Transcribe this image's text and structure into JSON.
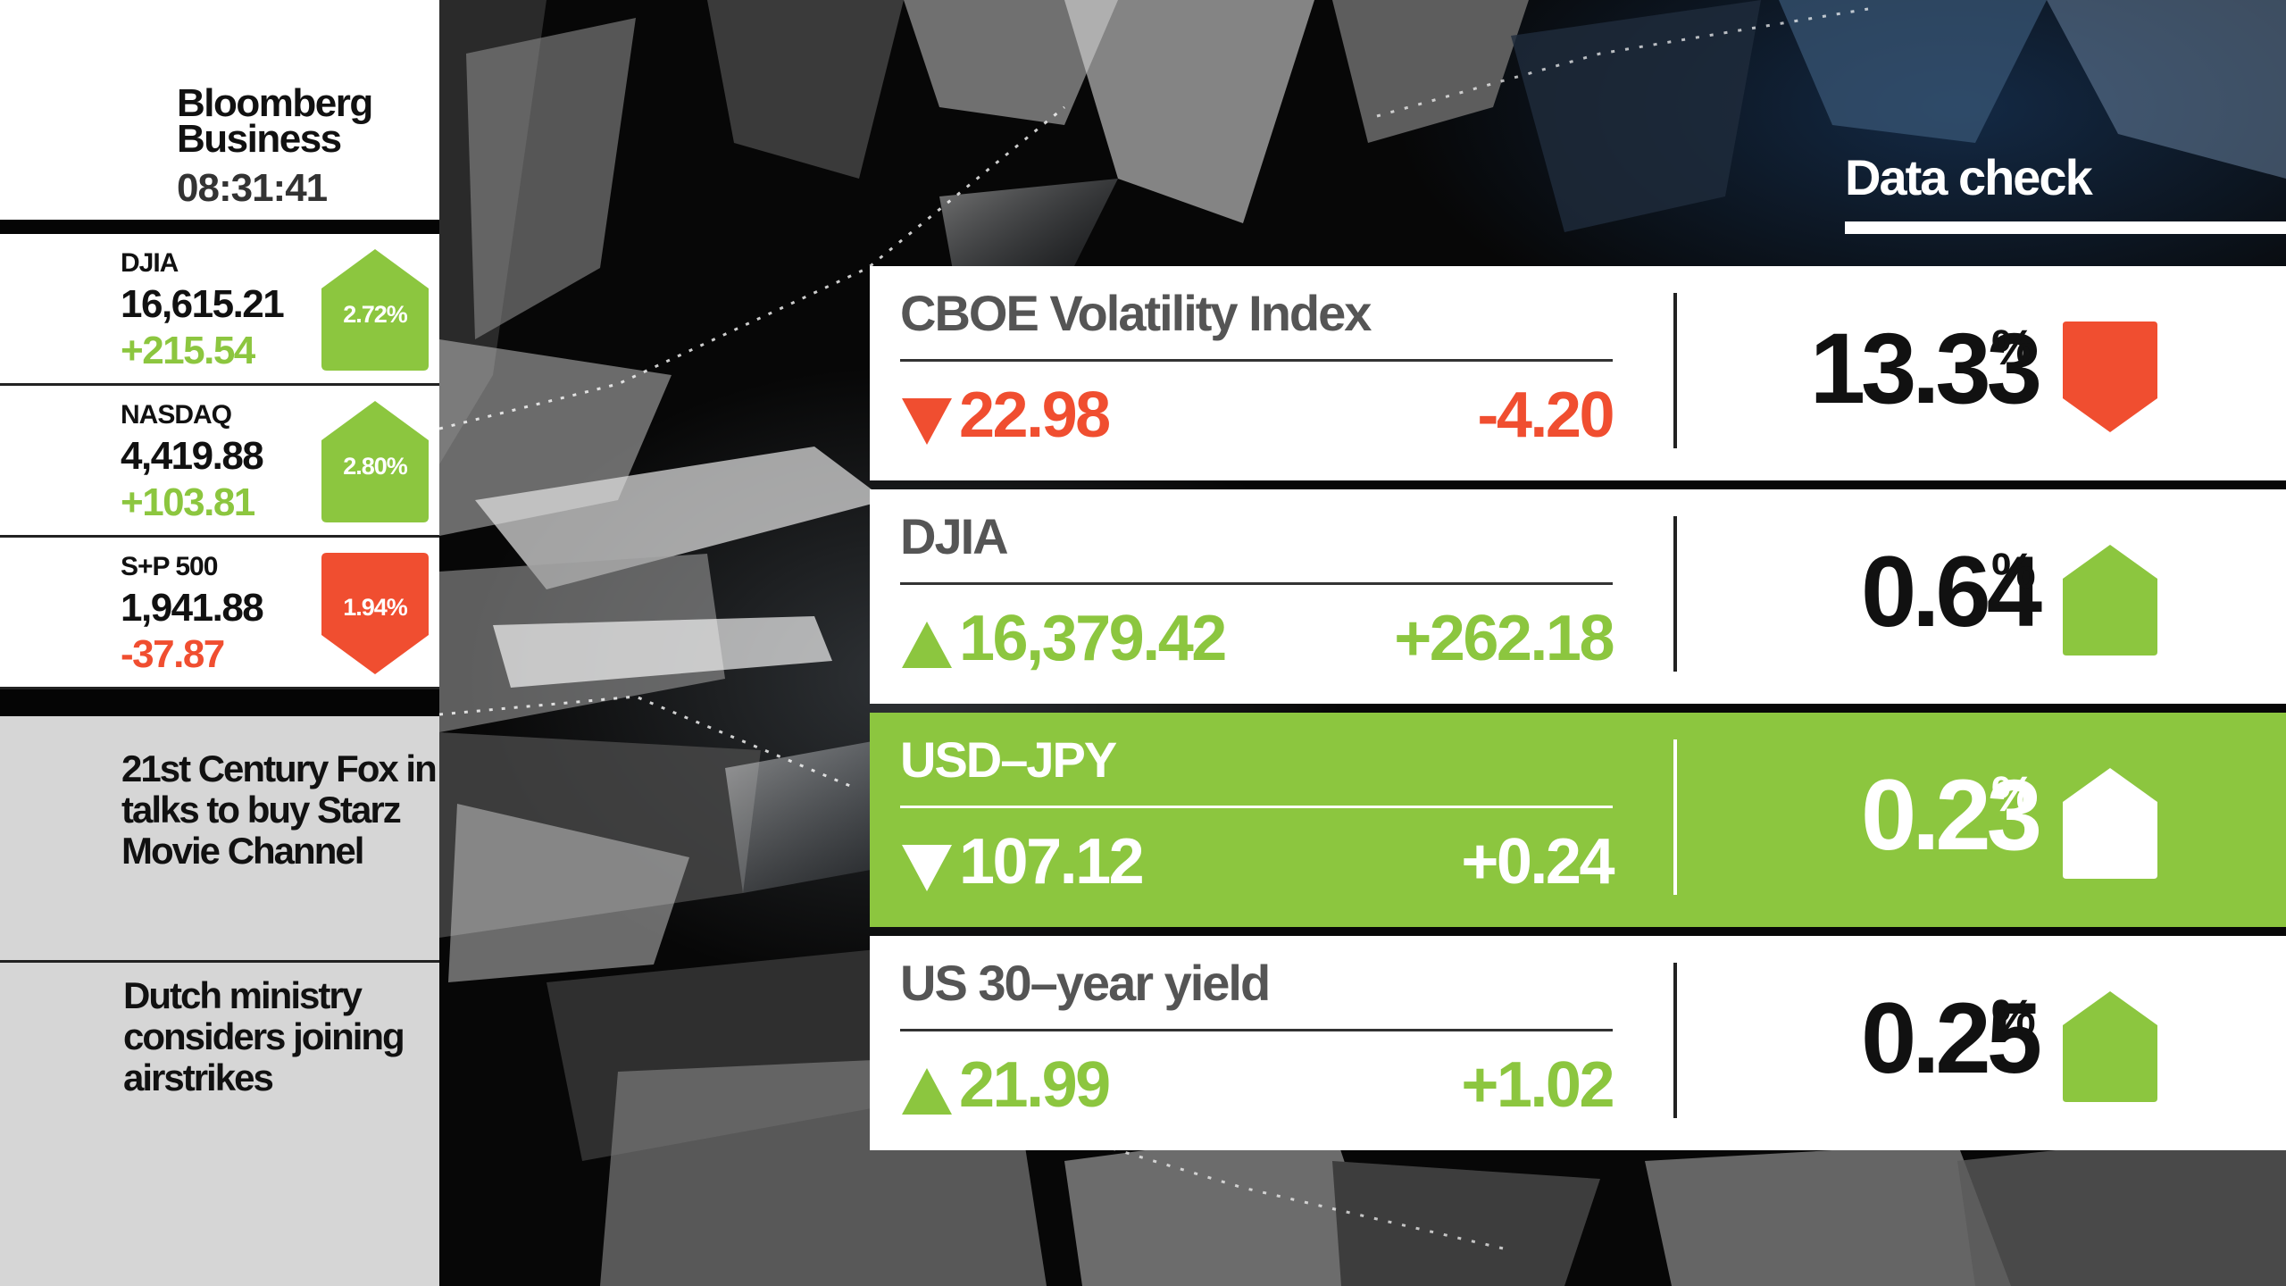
{
  "brand": {
    "name_line1": "Bloomberg",
    "name_line2": "Business",
    "time": "08:31:41"
  },
  "tickers": [
    {
      "name": "DJIA",
      "value": "16,615.21",
      "change": "+215.54",
      "pct": "2.72%",
      "direction": "up"
    },
    {
      "name": "NASDAQ",
      "value": "4,419.88",
      "change": "+103.81",
      "pct": "2.80%",
      "direction": "up"
    },
    {
      "name": "S+P 500",
      "value": "1,941.88",
      "change": "-37.87",
      "pct": "1.94%",
      "direction": "down"
    }
  ],
  "news": [
    "21st Century Fox in talks to buy Starz Movie Channel",
    "Dutch ministry considers joining airstrikes"
  ],
  "data_check": {
    "title": "Data check",
    "rows": [
      {
        "name": "CBOE Volatility Index",
        "value": "22.98",
        "change": "-4.20",
        "pct": "13.33",
        "pct_sign": "%",
        "value_arrow": "down",
        "badge": "down",
        "highlight": false
      },
      {
        "name": "DJIA",
        "value": "16,379.42",
        "change": "+262.18",
        "pct": "0.64",
        "pct_sign": "%",
        "value_arrow": "up",
        "badge": "up",
        "highlight": false
      },
      {
        "name": "USD–JPY",
        "value": "107.12",
        "change": "+0.24",
        "pct": "0.23",
        "pct_sign": "%",
        "value_arrow": "down",
        "badge": "up",
        "highlight": true
      },
      {
        "name": "US 30–year yield",
        "value": "21.99",
        "change": "+1.02",
        "pct": "0.25",
        "pct_sign": "%",
        "value_arrow": "up",
        "badge": "up",
        "highlight": false
      }
    ]
  },
  "colors": {
    "up": "#8cc63f",
    "down": "#f04e30",
    "neutral_text": "#555555"
  }
}
